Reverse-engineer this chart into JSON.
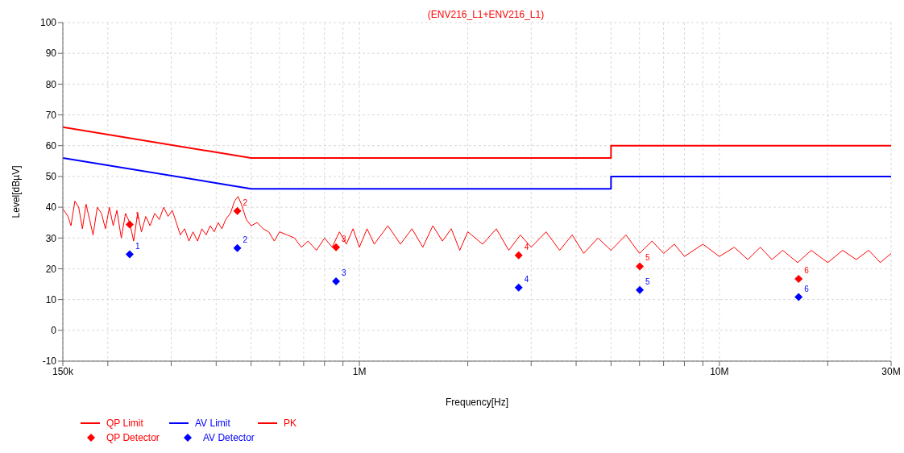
{
  "chart_data": {
    "type": "line",
    "title": "(ENV216_L1+ENV216_L1)",
    "xlabel": "Frequency[Hz]",
    "ylabel": "Level[dBµV]",
    "log": "x",
    "grid": true,
    "legend": "bottom left",
    "line_style": "solid",
    "xlim": [
      150000,
      30000000
    ],
    "xticks": [
      {
        "value": 150000,
        "label": "150k"
      },
      {
        "value": 200000,
        "label": null
      },
      {
        "value": 300000,
        "label": null
      },
      {
        "value": 400000,
        "label": null
      },
      {
        "value": 500000,
        "label": null
      },
      {
        "value": 600000,
        "label": null
      },
      {
        "value": 700000,
        "label": null
      },
      {
        "value": 800000,
        "label": null
      },
      {
        "value": 900000,
        "label": null
      },
      {
        "value": 1000000,
        "label": "1M"
      },
      {
        "value": 2000000,
        "label": null
      },
      {
        "value": 3000000,
        "label": null
      },
      {
        "value": 4000000,
        "label": null
      },
      {
        "value": 5000000,
        "label": null
      },
      {
        "value": 6000000,
        "label": null
      },
      {
        "value": 7000000,
        "label": null
      },
      {
        "value": 8000000,
        "label": null
      },
      {
        "value": 9000000,
        "label": null
      },
      {
        "value": 10000000,
        "label": "10M"
      },
      {
        "value": 20000000,
        "label": null
      },
      {
        "value": 30000000,
        "label": "30M"
      }
    ],
    "ylim": [
      -10,
      100
    ],
    "yticks": [
      -10,
      0,
      10,
      20,
      30,
      40,
      50,
      60,
      70,
      80,
      90,
      100
    ],
    "series": [
      {
        "name": "QP Limit",
        "color": "#ff0000",
        "x": [
          150000,
          500000,
          5000000,
          5000000,
          30000000
        ],
        "values": [
          66,
          56,
          56,
          60,
          60
        ]
      },
      {
        "name": "AV Limit",
        "color": "#0000ff",
        "x": [
          150000,
          500000,
          5000000,
          5000000,
          30000000
        ],
        "values": [
          56,
          46,
          46,
          50,
          50
        ]
      },
      {
        "name": "PK",
        "color": "#ff0000",
        "x": [
          150000,
          155000,
          158000,
          162000,
          166000,
          170000,
          174000,
          178000,
          182000,
          187000,
          192000,
          197000,
          202000,
          207000,
          212000,
          218000,
          224000,
          230000,
          236000,
          242000,
          248000,
          255000,
          262000,
          270000,
          278000,
          286000,
          294000,
          302000,
          310000,
          318000,
          327000,
          336000,
          345000,
          355000,
          365000,
          375000,
          385000,
          395000,
          405000,
          415000,
          425000,
          438000,
          450000,
          460000,
          470000,
          485000,
          500000,
          520000,
          540000,
          560000,
          580000,
          600000,
          630000,
          660000,
          690000,
          720000,
          760000,
          800000,
          840000,
          880000,
          920000,
          960000,
          1000000,
          1050000,
          1100000,
          1200000,
          1300000,
          1400000,
          1500000,
          1600000,
          1700000,
          1800000,
          1900000,
          2000000,
          2200000,
          2400000,
          2600000,
          2800000,
          3000000,
          3300000,
          3600000,
          3900000,
          4200000,
          4600000,
          5000000,
          5500000,
          6000000,
          6500000,
          7000000,
          7500000,
          8000000,
          9000000,
          10000000,
          11000000,
          12000000,
          13000000,
          14000000,
          15000000,
          16500000,
          18000000,
          20000000,
          22000000,
          24000000,
          26000000,
          28000000,
          30000000
        ],
        "values": [
          39.5,
          37,
          34,
          42,
          40,
          33,
          41,
          36,
          31,
          40,
          38,
          33,
          40,
          34,
          39,
          30,
          38,
          35,
          29,
          38,
          32,
          37,
          34,
          38,
          36,
          40,
          37,
          39,
          35,
          31,
          33,
          29,
          32,
          29,
          33,
          31,
          34,
          32,
          35,
          33,
          36,
          38,
          42,
          43.5,
          41,
          36,
          34,
          35,
          33,
          32,
          29,
          32,
          31,
          30,
          27,
          29,
          26,
          30,
          27,
          32,
          28,
          33,
          27,
          33,
          28,
          34,
          28,
          33,
          27,
          34,
          29,
          33,
          26,
          32,
          28,
          33,
          26,
          31,
          27,
          32,
          26,
          31,
          25,
          30,
          26,
          31,
          25,
          29,
          25,
          28,
          24,
          28,
          24,
          27,
          23,
          27,
          23,
          26,
          22,
          26,
          22,
          26,
          23,
          26,
          22,
          25
        ]
      },
      {
        "name": "QP Detector",
        "type": "scatter",
        "marker": "diamond",
        "color": "#ff0000",
        "x": [
          230000,
          458000,
          861000,
          2770000,
          6010000,
          16600000
        ],
        "values": [
          34.4,
          38.8,
          27.0,
          24.4,
          20.8,
          16.7
        ]
      },
      {
        "name": "AV Detector",
        "type": "scatter",
        "marker": "diamond",
        "color": "#0000ff",
        "x": [
          230000,
          458000,
          861000,
          2770000,
          6010000,
          16600000
        ],
        "values": [
          24.7,
          26.7,
          15.9,
          13.9,
          13.1,
          10.8
        ]
      }
    ],
    "annotations": [
      {
        "text": "1",
        "x": 230000,
        "y": 34.4
      },
      {
        "text": "2",
        "x": 458000,
        "y": 38.8
      },
      {
        "text": "3",
        "x": 861000,
        "y": 27.0
      },
      {
        "text": "4",
        "x": 2770000,
        "y": 24.4
      },
      {
        "text": "5",
        "x": 6010000,
        "y": 20.8
      },
      {
        "text": "6",
        "x": 16600000,
        "y": 16.7
      },
      {
        "text": "1",
        "x": 230000,
        "y": 24.7
      },
      {
        "text": "2",
        "x": 458000,
        "y": 26.7
      },
      {
        "text": "3",
        "x": 861000,
        "y": 15.9
      },
      {
        "text": "4",
        "x": 2770000,
        "y": 13.9
      },
      {
        "text": "5",
        "x": 6010000,
        "y": 13.1
      },
      {
        "text": "6",
        "x": 16600000,
        "y": 10.8
      }
    ]
  }
}
